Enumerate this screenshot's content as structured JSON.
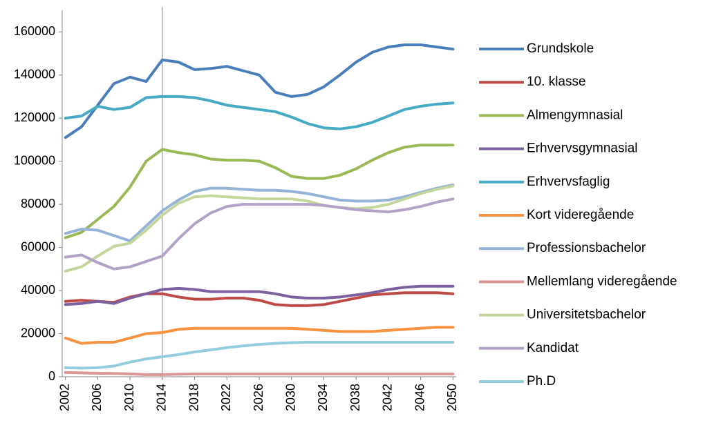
{
  "chart_data": {
    "type": "line",
    "x": [
      2002,
      2004,
      2006,
      2008,
      2010,
      2012,
      2014,
      2016,
      2018,
      2020,
      2022,
      2024,
      2026,
      2028,
      2030,
      2032,
      2034,
      2036,
      2038,
      2040,
      2042,
      2044,
      2046,
      2048,
      2050
    ],
    "xlim": [
      2001.6,
      2050.4
    ],
    "xticks": [
      2002,
      2006,
      2010,
      2014,
      2018,
      2022,
      2026,
      2030,
      2034,
      2038,
      2042,
      2046,
      2050
    ],
    "ylim": [
      0,
      170000
    ],
    "yticks": [
      0,
      20000,
      40000,
      60000,
      80000,
      100000,
      120000,
      140000,
      160000
    ],
    "vline_x": 2014,
    "series": [
      {
        "name": "Grundskole",
        "color": "#4A7EBB",
        "values": [
          111000,
          116000,
          126000,
          136000,
          139000,
          137000,
          147000,
          146000,
          142500,
          143000,
          144000,
          142000,
          140000,
          132000,
          130000,
          131000,
          134500,
          140000,
          146000,
          150500,
          153000,
          154000,
          154000,
          153000,
          152000
        ]
      },
      {
        "name": "10. klasse",
        "color": "#BE4B48",
        "values": [
          35000,
          35500,
          35000,
          34500,
          37000,
          38500,
          38500,
          37000,
          36000,
          36000,
          36500,
          36500,
          35500,
          33500,
          33000,
          33000,
          33500,
          35000,
          36500,
          38000,
          38500,
          39000,
          39000,
          39000,
          38500
        ]
      },
      {
        "name": "Almengymnasial",
        "color": "#98B954",
        "values": [
          64500,
          67000,
          73000,
          79000,
          88000,
          100000,
          105500,
          104000,
          103000,
          101000,
          100500,
          100500,
          100000,
          97000,
          93000,
          92000,
          92000,
          93500,
          96500,
          100500,
          104000,
          106500,
          107500,
          107500,
          107500
        ]
      },
      {
        "name": "Erhvervsgymnasial",
        "color": "#7D60A0",
        "values": [
          33500,
          34000,
          35000,
          34000,
          36500,
          38500,
          40500,
          41000,
          40500,
          39500,
          39500,
          39500,
          39500,
          38500,
          37000,
          36500,
          36500,
          37000,
          38000,
          39000,
          40500,
          41500,
          42000,
          42000,
          42000
        ]
      },
      {
        "name": "Erhvervsfaglig",
        "color": "#46AAC5",
        "values": [
          120000,
          121000,
          125500,
          124000,
          125000,
          129500,
          130000,
          130000,
          129500,
          128000,
          126000,
          125000,
          124000,
          123000,
          120500,
          117500,
          115500,
          115000,
          116000,
          118000,
          121000,
          124000,
          125500,
          126500,
          127000
        ]
      },
      {
        "name": "Kort videregående",
        "color": "#F69240",
        "values": [
          18000,
          15500,
          16000,
          16000,
          18000,
          20000,
          20500,
          22000,
          22500,
          22500,
          22500,
          22500,
          22500,
          22500,
          22500,
          22000,
          21500,
          21000,
          21000,
          21000,
          21500,
          22000,
          22500,
          23000,
          23000
        ]
      },
      {
        "name": "Professionsbachelor",
        "color": "#95B3D7",
        "values": [
          66500,
          68500,
          68000,
          65500,
          63000,
          70000,
          77000,
          82000,
          86000,
          87500,
          87500,
          87000,
          86500,
          86500,
          86000,
          85000,
          83500,
          82000,
          81500,
          81500,
          82000,
          83500,
          85500,
          87500,
          89000
        ]
      },
      {
        "name": "Mellemlang videregående",
        "color": "#D99694",
        "values": [
          2000,
          1800,
          1600,
          1500,
          1300,
          1000,
          1000,
          1200,
          1300,
          1300,
          1300,
          1300,
          1300,
          1300,
          1300,
          1300,
          1300,
          1300,
          1300,
          1300,
          1300,
          1300,
          1300,
          1300,
          1300
        ]
      },
      {
        "name": "Universitetsbachelor",
        "color": "#C3D69B",
        "values": [
          49000,
          51000,
          56000,
          60500,
          62000,
          68000,
          75000,
          80500,
          83500,
          84000,
          83500,
          83000,
          82500,
          82500,
          82500,
          81500,
          79500,
          78500,
          78000,
          78500,
          80000,
          82500,
          85000,
          87000,
          88500
        ]
      },
      {
        "name": "Kandidat",
        "color": "#B3A2C7",
        "values": [
          55500,
          56500,
          53000,
          50000,
          51000,
          53500,
          56000,
          64000,
          71000,
          76000,
          79000,
          80000,
          80000,
          80000,
          80000,
          80000,
          79500,
          78500,
          77500,
          77000,
          76500,
          77500,
          79000,
          81000,
          82500
        ]
      },
      {
        "name": "Ph.D",
        "color": "#93CDDD",
        "values": [
          4200,
          4000,
          4200,
          5000,
          6800,
          8300,
          9300,
          10300,
          11500,
          12500,
          13500,
          14300,
          15000,
          15500,
          15800,
          16000,
          16000,
          16000,
          16000,
          16000,
          16000,
          16000,
          16000,
          16000,
          16000
        ]
      }
    ]
  }
}
